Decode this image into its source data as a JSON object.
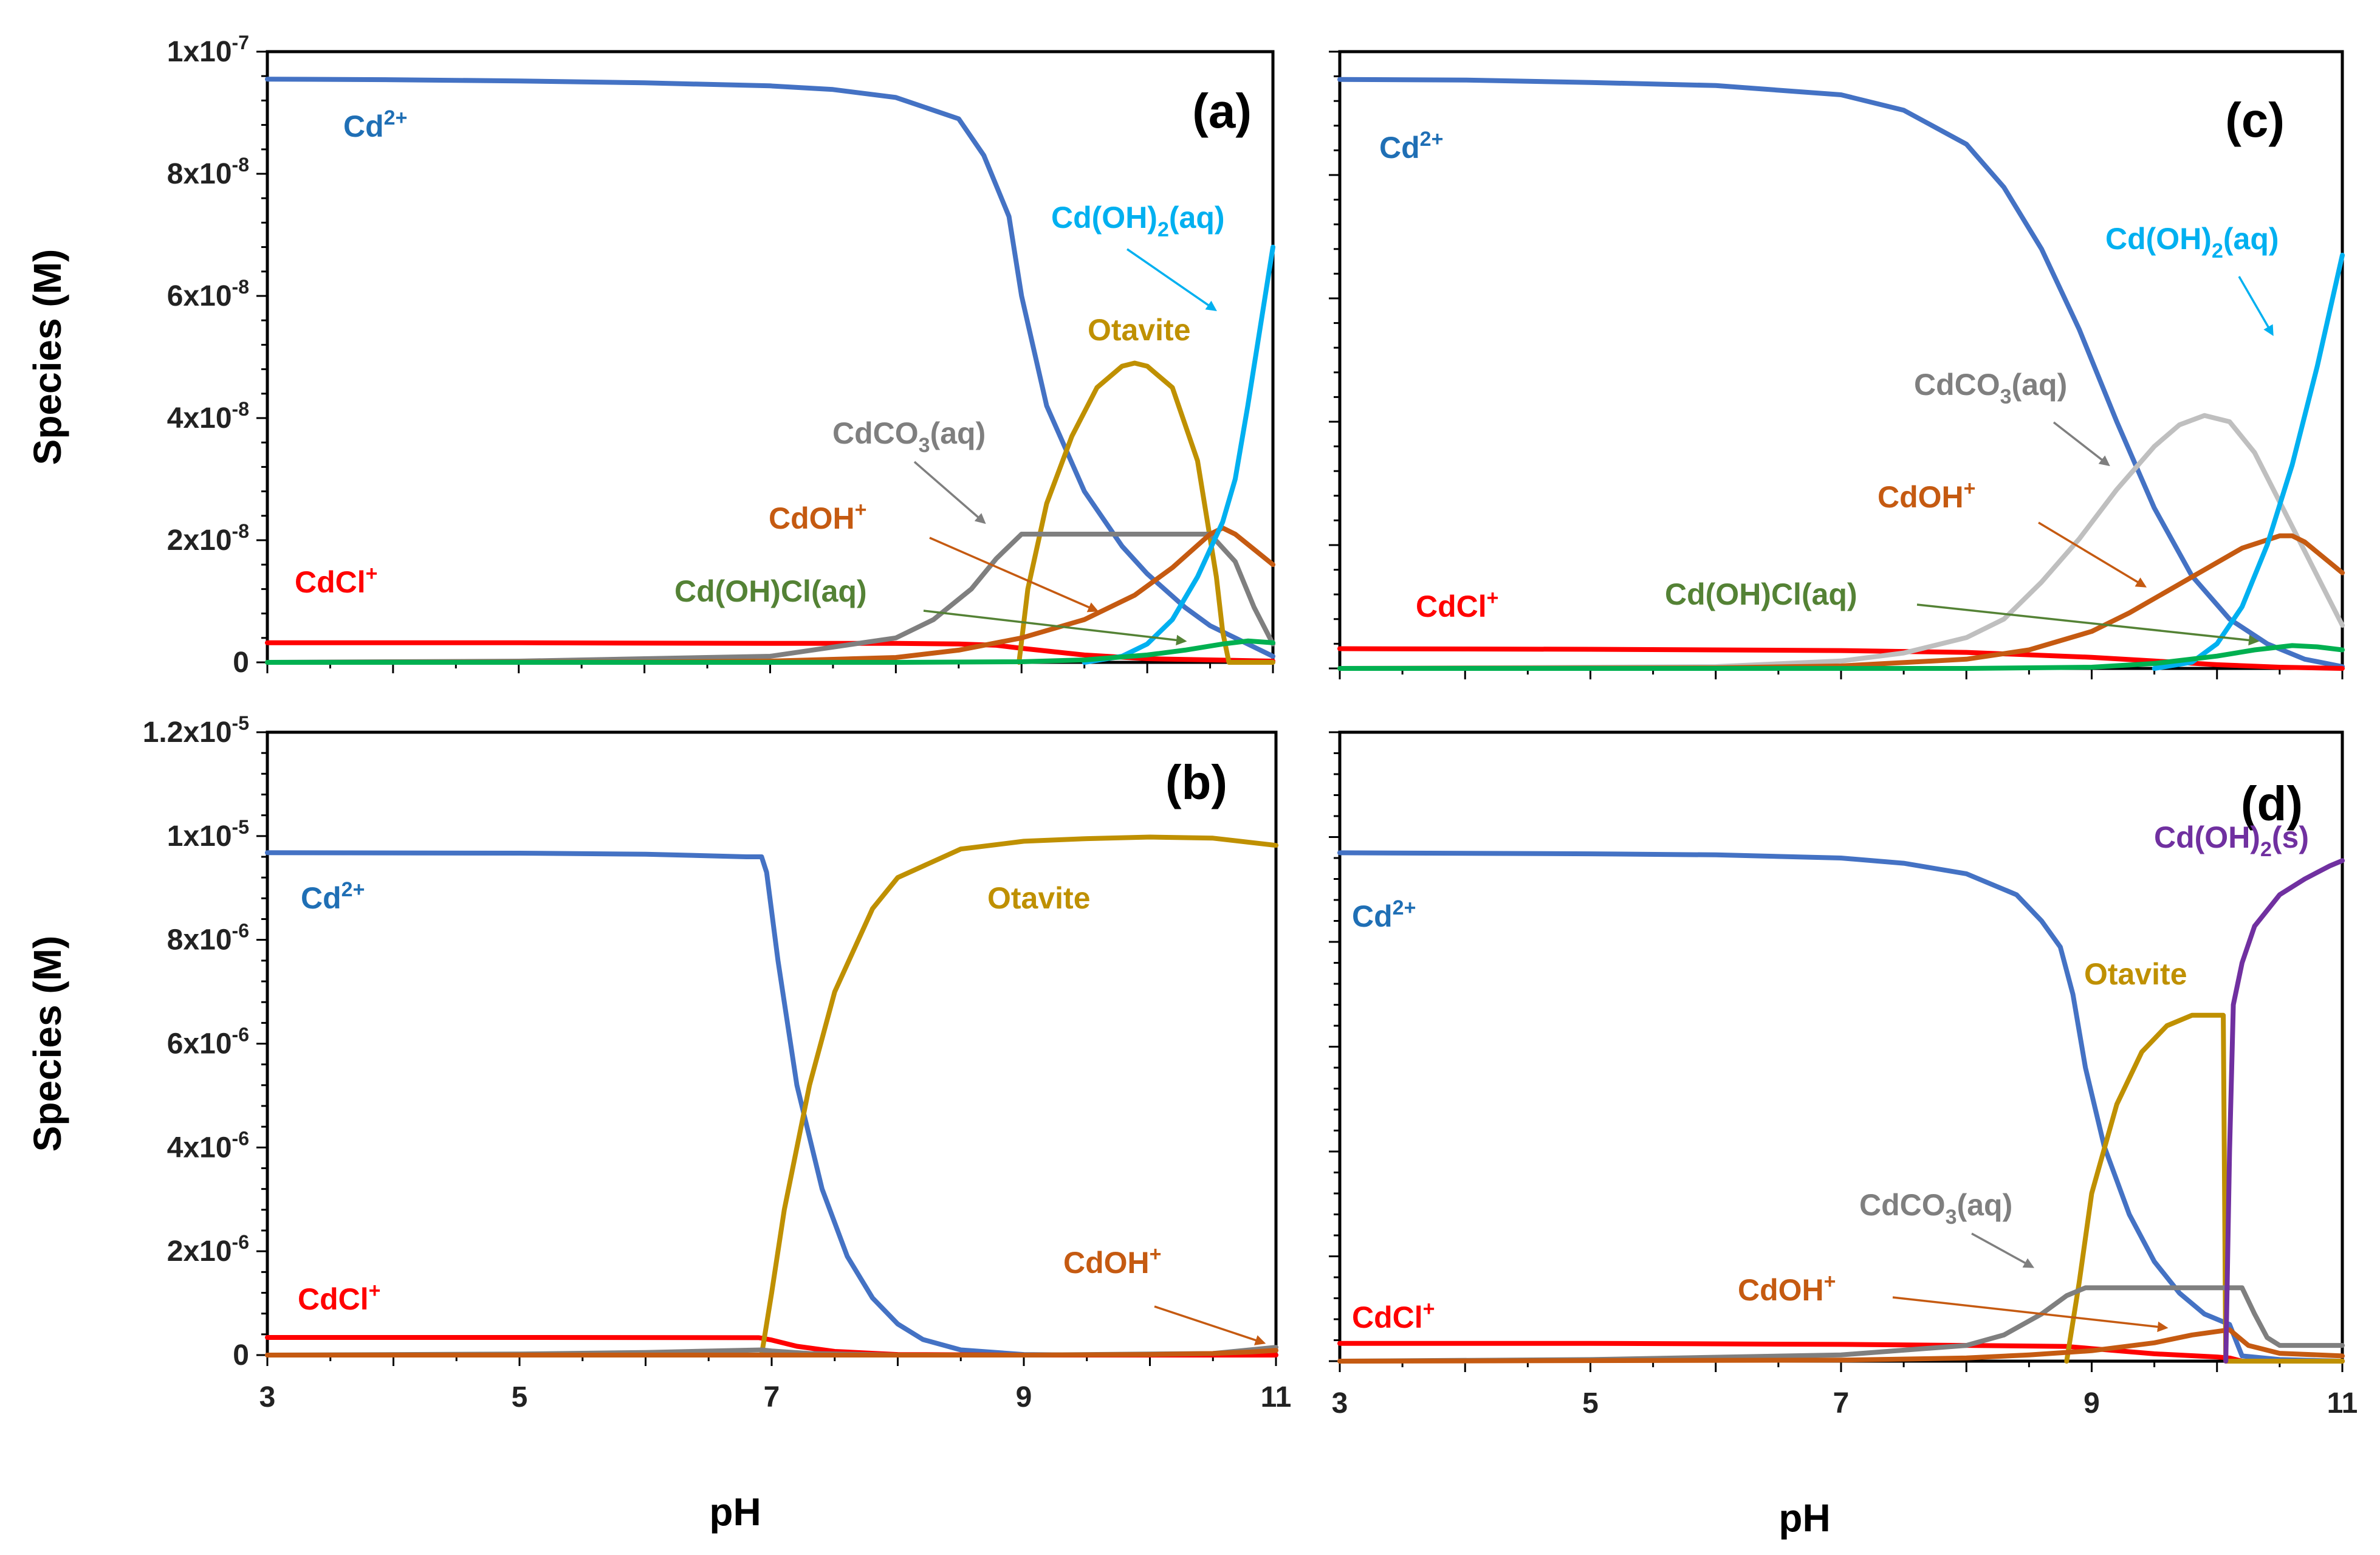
{
  "chart_data": [
    {
      "panel": "(a)",
      "type": "line",
      "xlabel": "",
      "ylabel": "Species (M)",
      "xlim": [
        3,
        11
      ],
      "ylim": [
        0,
        1e-07
      ],
      "xticks": [],
      "yticks": [
        {
          "value": 0,
          "mant": "0",
          "exp": ""
        },
        {
          "value": 2e-08,
          "mant": "2x10",
          "exp": "-8"
        },
        {
          "value": 4e-08,
          "mant": "4x10",
          "exp": "-8"
        },
        {
          "value": 6e-08,
          "mant": "6x10",
          "exp": "-8"
        },
        {
          "value": 8e-08,
          "mant": "8x10",
          "exp": "-8"
        },
        {
          "value": 1e-07,
          "mant": "1x10",
          "exp": "-7"
        }
      ],
      "series": [
        {
          "name": "Cd2+",
          "color": "#4472C4",
          "x": [
            3,
            4,
            5,
            6,
            7,
            7.5,
            8,
            8.5,
            8.7,
            8.9,
            9,
            9.2,
            9.5,
            9.8,
            10,
            10.3,
            10.5,
            10.8,
            11
          ],
          "y": [
            9.55e-08,
            9.54e-08,
            9.52e-08,
            9.49e-08,
            9.44e-08,
            9.38e-08,
            9.25e-08,
            8.9e-08,
            8.3e-08,
            7.3e-08,
            6e-08,
            4.2e-08,
            2.8e-08,
            1.9e-08,
            1.45e-08,
            9e-09,
            6e-09,
            3e-09,
            1e-09
          ]
        },
        {
          "name": "CdCl+",
          "color": "#FF0000",
          "x": [
            3,
            5,
            7,
            8,
            8.5,
            8.8,
            9,
            9.5,
            10,
            11
          ],
          "y": [
            3.2e-09,
            3.2e-09,
            3.1e-09,
            3.1e-09,
            3e-09,
            2.8e-09,
            2.3e-09,
            1.2e-09,
            6e-10,
            2e-10
          ]
        },
        {
          "name": "Otavite",
          "color": "#BF9000",
          "x": [
            8.98,
            9.05,
            9.2,
            9.4,
            9.6,
            9.8,
            9.9,
            10,
            10.2,
            10.4,
            10.55,
            10.6,
            10.65,
            11
          ],
          "y": [
            0,
            1.2e-08,
            2.6e-08,
            3.7e-08,
            4.5e-08,
            4.85e-08,
            4.9e-08,
            4.85e-08,
            4.5e-08,
            3.3e-08,
            1.4e-08,
            5e-09,
            0,
            0
          ]
        },
        {
          "name": "CdCO3(aq)",
          "color": "#7F7F7F",
          "x": [
            3,
            5,
            7,
            8,
            8.3,
            8.6,
            8.8,
            9,
            10,
            10.5,
            10.7,
            10.85,
            11
          ],
          "y": [
            0,
            2e-10,
            1e-09,
            4e-09,
            7e-09,
            1.2e-08,
            1.7e-08,
            2.1e-08,
            2.1e-08,
            2.1e-08,
            1.65e-08,
            9e-09,
            3e-09
          ]
        },
        {
          "name": "CdOH+",
          "color": "#C55A11",
          "x": [
            3,
            6,
            7,
            8,
            8.5,
            9,
            9.5,
            9.9,
            10.2,
            10.5,
            10.6,
            10.7,
            10.85,
            11
          ],
          "y": [
            0,
            5e-11,
            2e-10,
            8e-10,
            2e-09,
            4e-09,
            7e-09,
            1.1e-08,
            1.55e-08,
            2.1e-08,
            2.2e-08,
            2.1e-08,
            1.85e-08,
            1.6e-08
          ]
        },
        {
          "name": "Cd(OH)2(aq)",
          "color": "#00B0F0",
          "x": [
            9.5,
            9.8,
            10,
            10.2,
            10.4,
            10.6,
            10.7,
            10.8,
            10.9,
            11
          ],
          "y": [
            0,
            1e-09,
            3e-09,
            7e-09,
            1.4e-08,
            2.3e-08,
            3e-08,
            4.2e-08,
            5.5e-08,
            6.8e-08
          ]
        },
        {
          "name": "Cd(OH)Cl(aq)",
          "color": "#00B050",
          "x": [
            3,
            8,
            9,
            9.5,
            10,
            10.3,
            10.6,
            10.8,
            11
          ],
          "y": [
            0,
            0,
            1e-10,
            4e-10,
            1.2e-09,
            2e-09,
            3e-09,
            3.5e-09,
            3.2e-09
          ]
        }
      ],
      "annotations": [
        {
          "text": "Cd",
          "sup": "2+",
          "color": "#1F6FB5"
        },
        {
          "text": "CdCl",
          "sup": "+",
          "color": "#FF0000"
        },
        {
          "text": "Cd(OH)",
          "sub": "2",
          "tail": "(aq)",
          "color": "#00B0F0"
        },
        {
          "text": "Otavite",
          "color": "#BF9000"
        },
        {
          "text": "CdCO",
          "sub": "3",
          "tail": "(aq)",
          "color": "#7F7F7F"
        },
        {
          "text": "CdOH",
          "sup": "+",
          "color": "#C55A11"
        },
        {
          "text": "Cd(OH)Cl(aq)",
          "color": "#548235"
        }
      ]
    },
    {
      "panel": "(b)",
      "type": "line",
      "xlabel": "pH",
      "ylabel": "Species (M)",
      "xlim": [
        3,
        11
      ],
      "ylim": [
        0,
        1.2e-05
      ],
      "xticks": [
        "3",
        "5",
        "7",
        "9",
        "11"
      ],
      "yticks": [
        {
          "value": 0,
          "mant": "0",
          "exp": ""
        },
        {
          "value": 2e-06,
          "mant": "2x10",
          "exp": "-6"
        },
        {
          "value": 4e-06,
          "mant": "4x10",
          "exp": "-6"
        },
        {
          "value": 6e-06,
          "mant": "6x10",
          "exp": "-6"
        },
        {
          "value": 8e-06,
          "mant": "8x10",
          "exp": "-6"
        },
        {
          "value": 1e-05,
          "mant": "1x10",
          "exp": "-5"
        },
        {
          "value": 1.2e-05,
          "mant": "1.2x10",
          "exp": "-5"
        }
      ],
      "series": [
        {
          "name": "Cd2+",
          "color": "#4472C4",
          "x": [
            3,
            5,
            6,
            6.8,
            6.92,
            6.96,
            7.05,
            7.2,
            7.4,
            7.6,
            7.8,
            8,
            8.2,
            8.5,
            9,
            9.5,
            10,
            11
          ],
          "y": [
            9.68e-06,
            9.67e-06,
            9.65e-06,
            9.6e-06,
            9.6e-06,
            9.3e-06,
            7.6e-06,
            5.2e-06,
            3.2e-06,
            1.9e-06,
            1.1e-06,
            6e-07,
            3e-07,
            1e-07,
            1e-08,
            0,
            0,
            0
          ]
        },
        {
          "name": "CdCl+",
          "color": "#FF0000",
          "x": [
            3,
            5,
            6.9,
            7,
            7.2,
            7.5,
            8,
            9,
            11
          ],
          "y": [
            3.4e-07,
            3.4e-07,
            3.35e-07,
            2.9e-07,
            1.7e-07,
            7e-08,
            1e-08,
            0,
            0
          ]
        },
        {
          "name": "Otavite",
          "color": "#BF9000",
          "x": [
            6.92,
            7,
            7.1,
            7.3,
            7.5,
            7.8,
            8,
            8.5,
            9,
            9.5,
            10,
            10.5,
            11
          ],
          "y": [
            0,
            1.2e-06,
            2.8e-06,
            5.2e-06,
            7e-06,
            8.6e-06,
            9.2e-06,
            9.75e-06,
            9.9e-06,
            9.95e-06,
            9.98e-06,
            9.96e-06,
            9.82e-06
          ]
        },
        {
          "name": "CdCO3(aq)",
          "color": "#7F7F7F",
          "x": [
            3,
            5,
            6,
            6.92,
            7,
            7.3,
            8,
            9,
            10.5,
            11
          ],
          "y": [
            0,
            2e-08,
            5e-08,
            1e-07,
            8e-08,
            3e-08,
            0,
            0,
            3e-08,
            1.5e-07
          ]
        },
        {
          "name": "CdOH+",
          "color": "#C55A11",
          "x": [
            3,
            7,
            9,
            10,
            10.5,
            10.8,
            11
          ],
          "y": [
            0,
            0,
            0,
            1e-08,
            3e-08,
            6e-08,
            9e-08
          ]
        }
      ],
      "annotations": [
        {
          "text": "Cd",
          "sup": "2+",
          "color": "#1F6FB5"
        },
        {
          "text": "Otavite",
          "color": "#BF9000"
        },
        {
          "text": "CdCl",
          "sup": "+",
          "color": "#FF0000"
        },
        {
          "text": "CdOH",
          "sup": "+",
          "color": "#C55A11"
        }
      ]
    },
    {
      "panel": "(c)",
      "type": "line",
      "xlabel": "",
      "ylabel": "",
      "xlim": [
        3,
        11
      ],
      "ylim": [
        0,
        1e-07
      ],
      "xticks": [],
      "yticks": [],
      "series": [
        {
          "name": "Cd2+",
          "color": "#4472C4",
          "x": [
            3,
            4,
            5,
            6,
            7,
            7.5,
            8,
            8.3,
            8.6,
            8.9,
            9.2,
            9.5,
            9.8,
            10.1,
            10.4,
            10.7,
            11
          ],
          "y": [
            9.55e-08,
            9.54e-08,
            9.5e-08,
            9.45e-08,
            9.3e-08,
            9.05e-08,
            8.5e-08,
            7.8e-08,
            6.8e-08,
            5.5e-08,
            4e-08,
            2.6e-08,
            1.5e-08,
            8e-09,
            4e-09,
            1.5e-09,
            3e-10
          ]
        },
        {
          "name": "CdCl+",
          "color": "#FF0000",
          "x": [
            3,
            5,
            7,
            8,
            9,
            9.5,
            10,
            10.5,
            11
          ],
          "y": [
            3.2e-09,
            3.1e-09,
            2.9e-09,
            2.6e-09,
            1.8e-09,
            1.2e-09,
            6e-10,
            2e-10,
            0
          ]
        },
        {
          "name": "CdCO3(aq)",
          "color": "#BFBFBF",
          "x": [
            3,
            6,
            7,
            7.5,
            8,
            8.3,
            8.6,
            8.9,
            9.2,
            9.5,
            9.7,
            9.9,
            10.1,
            10.3,
            10.5,
            10.7,
            10.9,
            11
          ],
          "y": [
            0,
            3e-10,
            1.2e-09,
            2.5e-09,
            5e-09,
            8e-09,
            1.4e-08,
            2.1e-08,
            2.9e-08,
            3.6e-08,
            3.95e-08,
            4.1e-08,
            4e-08,
            3.5e-08,
            2.7e-08,
            1.9e-08,
            1.1e-08,
            7e-09
          ]
        },
        {
          "name": "CdOH+",
          "color": "#C55A11",
          "x": [
            3,
            6,
            7,
            8,
            8.5,
            9,
            9.3,
            9.6,
            9.9,
            10.2,
            10.5,
            10.6,
            10.7,
            10.85,
            11
          ],
          "y": [
            0,
            1e-10,
            4e-10,
            1.5e-09,
            3e-09,
            6e-09,
            9e-09,
            1.25e-08,
            1.6e-08,
            1.95e-08,
            2.15e-08,
            2.15e-08,
            2.05e-08,
            1.8e-08,
            1.55e-08
          ]
        },
        {
          "name": "Cd(OH)2(aq)",
          "color": "#00B0F0",
          "x": [
            9.5,
            9.8,
            10,
            10.2,
            10.4,
            10.6,
            10.8,
            11
          ],
          "y": [
            0,
            1e-09,
            4e-09,
            1e-08,
            2e-08,
            3.3e-08,
            4.9e-08,
            6.7e-08
          ]
        },
        {
          "name": "Cd(OH)Cl(aq)",
          "color": "#00B050",
          "x": [
            3,
            8,
            9,
            9.5,
            10,
            10.3,
            10.6,
            10.8,
            11
          ],
          "y": [
            0,
            0,
            2e-10,
            8e-10,
            2e-09,
            3e-09,
            3.7e-09,
            3.5e-09,
            3e-09
          ]
        }
      ],
      "annotations": [
        {
          "text": "Cd",
          "sup": "2+",
          "color": "#1F6FB5"
        },
        {
          "text": "Cd(OH)",
          "sub": "2",
          "tail": "(aq)",
          "color": "#00B0F0"
        },
        {
          "text": "CdCO",
          "sub": "3",
          "tail": "(aq)",
          "color": "#7F7F7F"
        },
        {
          "text": "CdOH",
          "sup": "+",
          "color": "#C55A11"
        },
        {
          "text": "CdCl",
          "sup": "+",
          "color": "#FF0000"
        },
        {
          "text": "Cd(OH)Cl(aq)",
          "color": "#548235"
        }
      ]
    },
    {
      "panel": "(d)",
      "type": "line",
      "xlabel": "pH",
      "ylabel": "",
      "xlim": [
        3,
        11
      ],
      "ylim": [
        0,
        1.2e-05
      ],
      "xticks": [
        "3",
        "5",
        "7",
        "9",
        "11"
      ],
      "yticks": [],
      "series": [
        {
          "name": "Cd2+",
          "color": "#4472C4",
          "x": [
            3,
            5,
            6,
            7,
            7.5,
            8,
            8.4,
            8.6,
            8.75,
            8.85,
            8.95,
            9.1,
            9.3,
            9.5,
            9.7,
            9.9,
            10.1,
            10.2,
            10.5,
            11
          ],
          "y": [
            9.7e-06,
            9.68e-06,
            9.66e-06,
            9.6e-06,
            9.5e-06,
            9.3e-06,
            8.9e-06,
            8.4e-06,
            7.9e-06,
            7e-06,
            5.6e-06,
            4.1e-06,
            2.8e-06,
            1.9e-06,
            1.3e-06,
            9e-07,
            7e-07,
            1e-07,
            3e-08,
            0
          ]
        },
        {
          "name": "CdCl+",
          "color": "#FF0000",
          "x": [
            3,
            5,
            7,
            8,
            8.8,
            9,
            9.5,
            10,
            10.1,
            10.2,
            11
          ],
          "y": [
            3.4e-07,
            3.4e-07,
            3.2e-07,
            3e-07,
            2.8e-07,
            2.4e-07,
            1.4e-07,
            8e-08,
            6e-08,
            0,
            0
          ]
        },
        {
          "name": "Otavite",
          "color": "#BF9000",
          "x": [
            8.8,
            8.9,
            9,
            9.2,
            9.4,
            9.6,
            9.8,
            9.95,
            10.05,
            10.07,
            10.1,
            11
          ],
          "y": [
            0,
            1.5e-06,
            3.2e-06,
            4.9e-06,
            5.9e-06,
            6.4e-06,
            6.6e-06,
            6.6e-06,
            6.6e-06,
            0,
            0,
            0
          ]
        },
        {
          "name": "CdCO3(aq)",
          "color": "#7F7F7F",
          "x": [
            3,
            5,
            7,
            8,
            8.3,
            8.6,
            8.8,
            8.95,
            9.5,
            10.2,
            10.3,
            10.4,
            10.5,
            11
          ],
          "y": [
            0,
            3e-08,
            1.2e-07,
            3e-07,
            5e-07,
            9e-07,
            1.25e-06,
            1.4e-06,
            1.4e-06,
            1.4e-06,
            9e-07,
            4.5e-07,
            3e-07,
            3e-07
          ]
        },
        {
          "name": "CdOH+",
          "color": "#C55A11",
          "x": [
            3,
            7,
            8,
            8.5,
            9,
            9.5,
            9.8,
            10.1,
            10.25,
            10.5,
            11
          ],
          "y": [
            0,
            2e-08,
            6e-08,
            1.2e-07,
            2e-07,
            3.5e-07,
            5e-07,
            6e-07,
            3e-07,
            1.5e-07,
            1e-07
          ]
        },
        {
          "name": "Cd(OH)2(s)",
          "color": "#7030A0",
          "x": [
            10.07,
            10.1,
            10.13,
            10.2,
            10.3,
            10.5,
            10.7,
            10.9,
            11
          ],
          "y": [
            0,
            4e-06,
            6.8e-06,
            7.6e-06,
            8.3e-06,
            8.9e-06,
            9.2e-06,
            9.45e-06,
            9.55e-06
          ]
        }
      ],
      "annotations": [
        {
          "text": "Cd",
          "sup": "2+",
          "color": "#1F6FB5"
        },
        {
          "text": "Cd(OH)",
          "sub": "2",
          "tail": "(s)",
          "color": "#7030A0"
        },
        {
          "text": "Otavite",
          "color": "#BF9000"
        },
        {
          "text": "CdCO",
          "sub": "3",
          "tail": "(aq)",
          "color": "#7F7F7F"
        },
        {
          "text": "CdOH",
          "sup": "+",
          "color": "#C55A11"
        },
        {
          "text": "CdCl",
          "sup": "+",
          "color": "#FF0000"
        }
      ]
    }
  ]
}
